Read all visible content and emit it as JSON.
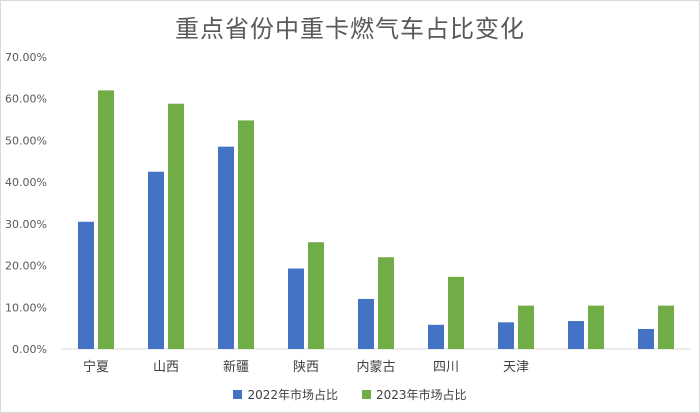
{
  "chart_data": {
    "type": "bar",
    "title": "重点省份中重卡燃气车占比变化",
    "categories": [
      "宁夏",
      "山西",
      "新疆",
      "陕西",
      "内蒙古",
      "四川",
      "天津",
      "",
      ""
    ],
    "series": [
      {
        "name": "2022年市场占比",
        "color": "#4472C4",
        "values": [
          30.5,
          42.5,
          48.5,
          19.3,
          12.0,
          5.8,
          6.4,
          6.7,
          4.8
        ]
      },
      {
        "name": "2023年市场占比",
        "color": "#70AD47",
        "values": [
          62.0,
          58.8,
          54.8,
          25.6,
          22.0,
          17.3,
          10.4,
          10.4,
          10.4
        ]
      }
    ],
    "ylim": [
      0,
      70
    ],
    "yticks": [
      "0.00%",
      "10.00%",
      "20.00%",
      "30.00%",
      "40.00%",
      "50.00%",
      "60.00%",
      "70.00%"
    ],
    "grid": false,
    "legend_position": "bottom"
  }
}
